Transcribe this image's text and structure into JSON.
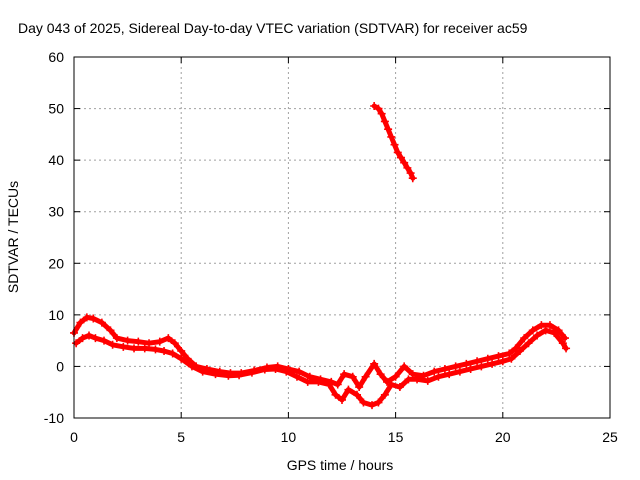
{
  "chart_data": {
    "type": "scatter",
    "title": "Day 043 of 2025, Sidereal Day-to-day VTEC variation (SDTVAR) for receiver ac59",
    "xlabel": "GPS time / hours",
    "ylabel": "SDTVAR / TECUs",
    "xlim": [
      0,
      25
    ],
    "ylim": [
      -10,
      60
    ],
    "xticks": [
      0,
      5,
      10,
      15,
      20,
      25
    ],
    "yticks": [
      -10,
      0,
      10,
      20,
      30,
      40,
      50,
      60
    ],
    "grid": true,
    "marker": "plus",
    "series": [
      {
        "name": "SDTVAR upper band",
        "color": "#ff0000",
        "points": [
          [
            0.0,
            6.5
          ],
          [
            0.3,
            8.5
          ],
          [
            0.6,
            9.5
          ],
          [
            0.9,
            9.3
          ],
          [
            1.3,
            8.5
          ],
          [
            1.7,
            7.0
          ],
          [
            2.0,
            5.5
          ],
          [
            2.5,
            5.0
          ],
          [
            3.0,
            4.8
          ],
          [
            3.5,
            4.5
          ],
          [
            4.0,
            4.8
          ],
          [
            4.4,
            5.5
          ],
          [
            4.7,
            4.5
          ],
          [
            5.0,
            3.0
          ],
          [
            5.3,
            1.5
          ],
          [
            5.7,
            0.0
          ],
          [
            6.2,
            -0.5
          ],
          [
            6.8,
            -1.0
          ],
          [
            7.3,
            -1.3
          ],
          [
            7.8,
            -1.3
          ],
          [
            8.4,
            -0.8
          ],
          [
            9.0,
            -0.2
          ],
          [
            9.5,
            0.0
          ],
          [
            10.0,
            -0.5
          ],
          [
            10.5,
            -1.0
          ],
          [
            11.0,
            -2.0
          ],
          [
            11.5,
            -2.5
          ],
          [
            12.0,
            -3.0
          ],
          [
            12.3,
            -3.5
          ],
          [
            12.6,
            -1.5
          ],
          [
            13.0,
            -2.0
          ],
          [
            13.3,
            -4.0
          ],
          [
            13.6,
            -2.0
          ],
          [
            14.0,
            0.5
          ],
          [
            14.3,
            -1.5
          ],
          [
            14.6,
            -3.0
          ],
          [
            15.0,
            -2.0
          ],
          [
            15.4,
            0.0
          ],
          [
            15.8,
            -1.5
          ],
          [
            16.3,
            -1.8
          ],
          [
            16.8,
            -1.0
          ],
          [
            17.3,
            -0.5
          ],
          [
            17.8,
            0.0
          ],
          [
            18.3,
            0.5
          ],
          [
            18.8,
            1.0
          ],
          [
            19.3,
            1.5
          ],
          [
            19.8,
            2.0
          ],
          [
            20.3,
            2.5
          ],
          [
            20.6,
            3.5
          ],
          [
            21.0,
            5.5
          ],
          [
            21.4,
            7.0
          ],
          [
            21.8,
            8.0
          ],
          [
            22.2,
            8.0
          ],
          [
            22.6,
            7.0
          ],
          [
            22.9,
            5.5
          ]
        ]
      },
      {
        "name": "SDTVAR lower band",
        "color": "#ff0000",
        "points": [
          [
            0.1,
            4.5
          ],
          [
            0.4,
            5.5
          ],
          [
            0.7,
            6.0
          ],
          [
            1.0,
            5.5
          ],
          [
            1.4,
            5.0
          ],
          [
            1.8,
            4.2
          ],
          [
            2.3,
            3.8
          ],
          [
            2.8,
            3.5
          ],
          [
            3.3,
            3.5
          ],
          [
            3.8,
            3.3
          ],
          [
            4.2,
            3.0
          ],
          [
            4.6,
            2.5
          ],
          [
            5.0,
            1.5
          ],
          [
            5.5,
            0.0
          ],
          [
            6.0,
            -1.0
          ],
          [
            6.6,
            -1.5
          ],
          [
            7.2,
            -1.8
          ],
          [
            7.7,
            -1.7
          ],
          [
            8.3,
            -1.2
          ],
          [
            8.9,
            -0.6
          ],
          [
            9.4,
            -0.5
          ],
          [
            9.9,
            -1.0
          ],
          [
            10.4,
            -2.0
          ],
          [
            10.9,
            -3.0
          ],
          [
            11.4,
            -3.0
          ],
          [
            11.9,
            -3.5
          ],
          [
            12.2,
            -5.5
          ],
          [
            12.5,
            -6.5
          ],
          [
            12.8,
            -4.5
          ],
          [
            13.2,
            -5.5
          ],
          [
            13.5,
            -7.0
          ],
          [
            13.9,
            -7.5
          ],
          [
            14.2,
            -7.0
          ],
          [
            14.5,
            -5.5
          ],
          [
            14.8,
            -3.5
          ],
          [
            15.2,
            -4.0
          ],
          [
            15.6,
            -2.5
          ],
          [
            16.0,
            -2.5
          ],
          [
            16.5,
            -2.8
          ],
          [
            17.0,
            -2.0
          ],
          [
            17.5,
            -1.5
          ],
          [
            18.0,
            -1.0
          ],
          [
            18.5,
            -0.5
          ],
          [
            19.0,
            0.0
          ],
          [
            19.5,
            0.5
          ],
          [
            20.0,
            1.0
          ],
          [
            20.4,
            1.5
          ],
          [
            20.8,
            3.0
          ],
          [
            21.2,
            4.5
          ],
          [
            21.6,
            6.0
          ],
          [
            22.0,
            7.0
          ],
          [
            22.4,
            6.5
          ],
          [
            22.8,
            4.5
          ],
          [
            22.95,
            3.5
          ]
        ]
      },
      {
        "name": "SDTVAR high arc",
        "color": "#ff0000",
        "points": [
          [
            14.0,
            50.5
          ],
          [
            14.2,
            50.0
          ],
          [
            14.35,
            49.0
          ],
          [
            14.5,
            47.5
          ],
          [
            14.65,
            46.0
          ],
          [
            14.8,
            44.5
          ],
          [
            14.95,
            43.0
          ],
          [
            15.1,
            41.5
          ],
          [
            15.25,
            40.5
          ],
          [
            15.4,
            39.5
          ],
          [
            15.55,
            38.5
          ],
          [
            15.7,
            37.5
          ],
          [
            15.8,
            36.5
          ]
        ]
      }
    ]
  }
}
